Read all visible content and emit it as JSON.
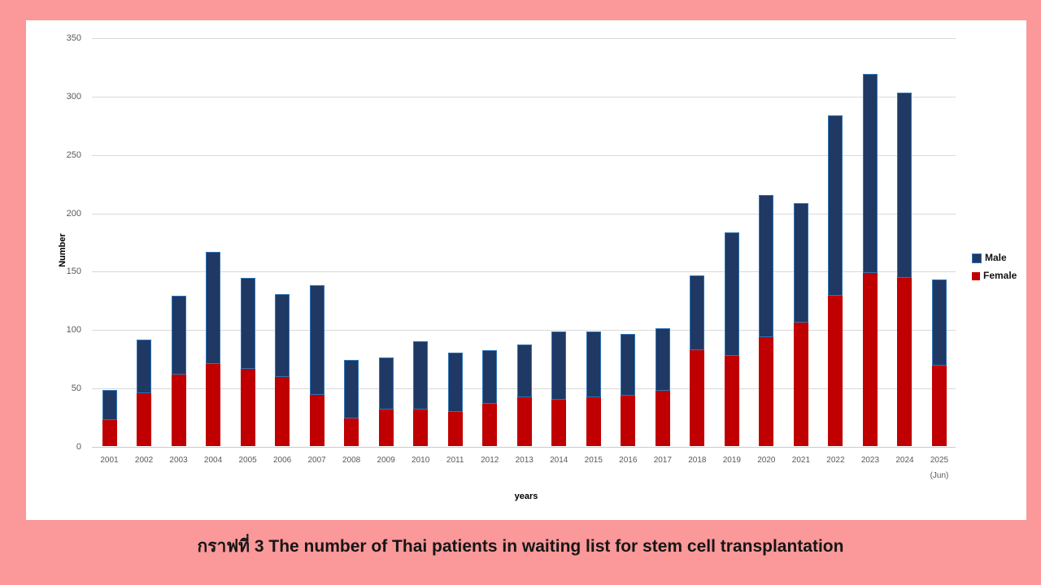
{
  "colors": {
    "page_background": "#FB9899",
    "chart_background": "#FFFFFF",
    "male_bar": "#1F3864",
    "male_bar_border": "#2E75B6",
    "female_bar": "#C00000",
    "gridline": "#D9D9D9",
    "tick_text": "#595959"
  },
  "chart_data": {
    "type": "bar",
    "stacked": true,
    "title": "กราฟที่ 3 The number of Thai patients in waiting list for stem cell transplantation",
    "xlabel": "years",
    "ylabel": "Number",
    "ylim": [
      0,
      350
    ],
    "y_ticks": [
      0,
      50,
      100,
      150,
      200,
      250,
      300,
      350
    ],
    "grid": true,
    "legend_position": "right",
    "categories": [
      "2001",
      "2002",
      "2003",
      "2004",
      "2005",
      "2006",
      "2007",
      "2008",
      "2009",
      "2010",
      "2011",
      "2012",
      "2013",
      "2014",
      "2015",
      "2016",
      "2017",
      "2018",
      "2019",
      "2020",
      "2021",
      "2022",
      "2023",
      "2024",
      "2025"
    ],
    "last_category_note": "(Jun)",
    "series": [
      {
        "name": "Male",
        "color": "#1F3864",
        "values": [
          26,
          46,
          68,
          96,
          78,
          71,
          94,
          50,
          45,
          59,
          51,
          46,
          45,
          58,
          56,
          53,
          54,
          64,
          106,
          122,
          102,
          154,
          171,
          159,
          74
        ]
      },
      {
        "name": "Female",
        "color": "#C00000",
        "values": [
          22,
          45,
          61,
          70,
          66,
          59,
          44,
          24,
          31,
          31,
          29,
          36,
          42,
          40,
          42,
          43,
          47,
          82,
          77,
          93,
          106,
          129,
          148,
          144,
          69
        ]
      }
    ],
    "totals": [
      48,
      91,
      129,
      166,
      144,
      130,
      138,
      74,
      76,
      90,
      80,
      82,
      87,
      98,
      98,
      96,
      101,
      146,
      183,
      215,
      208,
      283,
      319,
      303,
      143
    ]
  }
}
